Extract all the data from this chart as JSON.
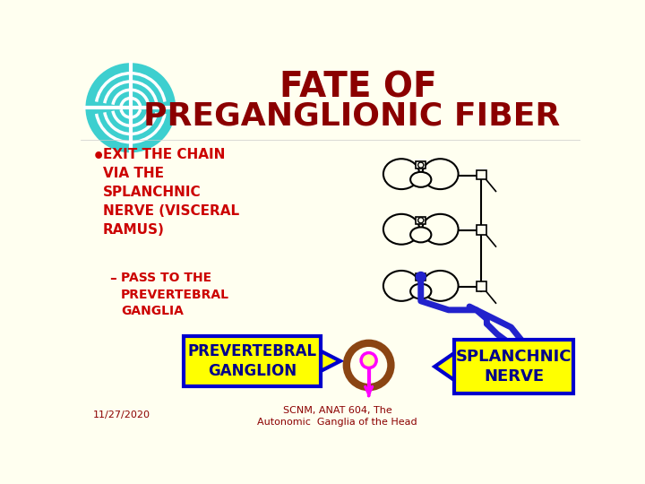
{
  "title_line1": "FATE OF",
  "title_line2": "PREGANGLIONIC FIBER",
  "title_color": "#8B0000",
  "bg_color": "#FFFFF0",
  "bullet_text": "EXIT THE CHAIN\nVIA THE\nSPLANCHNIC\nNERVE (VISCERAL\nRAMUS)",
  "bullet_color": "#CC0000",
  "sub_bullet_text": "PASS TO THE\nPREVERTEBRAL\nGANGLIA",
  "sub_bullet_color": "#CC0000",
  "box1_text": "PREVERTEBRAL\nGANGLION",
  "box1_bg": "#FFFF00",
  "box1_border": "#0000CC",
  "box1_text_color": "#00008B",
  "box2_text": "SPLANCHNIC\nNERVE",
  "box2_bg": "#FFFF00",
  "box2_border": "#0000CC",
  "box2_text_color": "#00008B",
  "date_text": "11/27/2020",
  "date_color": "#8B0000",
  "footer_text": "SCNM, ANAT 604, The\nAutonomic  Ganglia of the Head",
  "footer_color": "#8B0000",
  "nerve_color": "#2222CC",
  "ganglion_circle_color": "#8B4513",
  "pin_color": "#FF00FF",
  "teal_color": "#3DCFCF",
  "spine_color": "#000000"
}
